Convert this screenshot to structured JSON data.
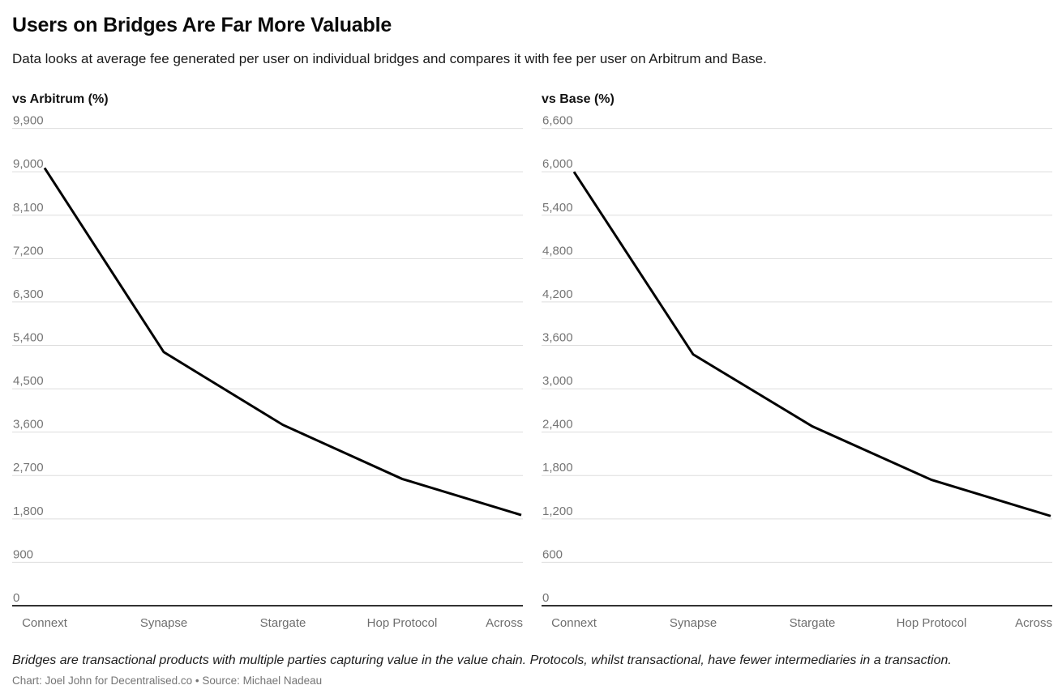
{
  "header": {
    "title": "Users on Bridges Are Far More Valuable",
    "subtitle": "Data looks at average fee generated per user on individual bridges and compares it with fee per user on Arbitrum and Base."
  },
  "chart_data": [
    {
      "type": "line",
      "title": "vs Arbitrum (%)",
      "categories": [
        "Connext",
        "Synapse",
        "Stargate",
        "Hop Protocol",
        "Across"
      ],
      "values": [
        9080,
        5260,
        3750,
        2630,
        1880
      ],
      "ylim": [
        0,
        9900
      ],
      "ytick_step": 900,
      "yticks": [
        0,
        900,
        1800,
        2700,
        3600,
        4500,
        5400,
        6300,
        7200,
        8100,
        9000,
        9900
      ],
      "grid": true,
      "legend": "none",
      "xlabel": "",
      "ylabel": "vs Arbitrum (%)"
    },
    {
      "type": "line",
      "title": "vs Base (%)",
      "categories": [
        "Connext",
        "Synapse",
        "Stargate",
        "Hop Protocol",
        "Across"
      ],
      "values": [
        6000,
        3475,
        2480,
        1740,
        1240
      ],
      "ylim": [
        0,
        6600
      ],
      "ytick_step": 600,
      "yticks": [
        0,
        600,
        1200,
        1800,
        2400,
        3000,
        3600,
        4200,
        4800,
        5400,
        6000,
        6600
      ],
      "grid": true,
      "legend": "none",
      "xlabel": "",
      "ylabel": "vs Base (%)"
    }
  ],
  "footer": {
    "note": "Bridges are transactional products with multiple parties capturing value in the value chain. Protocols, whilst transactional, have fewer intermediaries in a transaction.",
    "credit": "Chart: Joel John for Decentralised.co • Source: Michael Nadeau"
  },
  "colors": {
    "line": "#000000",
    "gridline": "#dddddd",
    "baseline": "#333333",
    "tick_label": "#757575",
    "category_label": "#6e6e6e",
    "title": "#0b0b0b"
  }
}
